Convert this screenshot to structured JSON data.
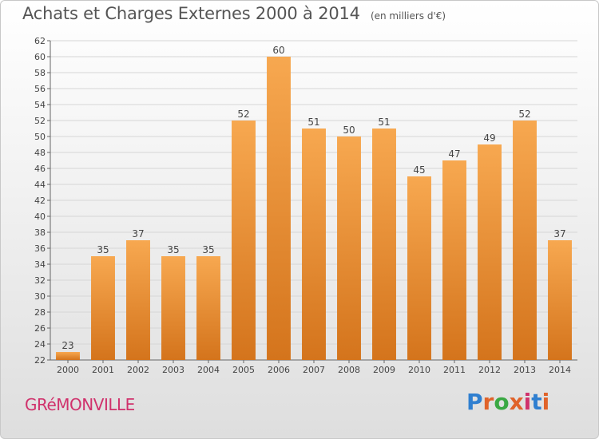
{
  "header": {
    "title": "Achats et Charges Externes 2000 à 2014",
    "subtitle": "(en milliers d'€)"
  },
  "footer": {
    "commune": "GRéMONVILLE",
    "logo": "Proxiti"
  },
  "colors": {
    "bar_light": "#f7a850",
    "bar_dark": "#d4741c",
    "commune": "#d0326c",
    "logo_letters": [
      "#2f7fd0",
      "#e0632a",
      "#3aa843",
      "#e0632a",
      "#d0326c",
      "#2f7fd0",
      "#e0632a"
    ]
  },
  "chart_data": {
    "type": "bar",
    "title": "Achats et Charges Externes 2000 à 2014",
    "subtitle": "(en milliers d'€)",
    "xlabel": "",
    "ylabel": "",
    "categories": [
      "2000",
      "2001",
      "2002",
      "2003",
      "2004",
      "2005",
      "2006",
      "2007",
      "2008",
      "2009",
      "2010",
      "2011",
      "2012",
      "2013",
      "2014"
    ],
    "values": [
      23,
      35,
      37,
      35,
      35,
      52,
      60,
      51,
      50,
      51,
      45,
      47,
      49,
      52,
      37
    ],
    "ylim": [
      22,
      62
    ],
    "yticks": [
      22,
      24,
      26,
      28,
      30,
      32,
      34,
      36,
      38,
      40,
      42,
      44,
      46,
      48,
      50,
      52,
      54,
      56,
      58,
      60,
      62
    ],
    "grid": true,
    "data_labels": true
  }
}
